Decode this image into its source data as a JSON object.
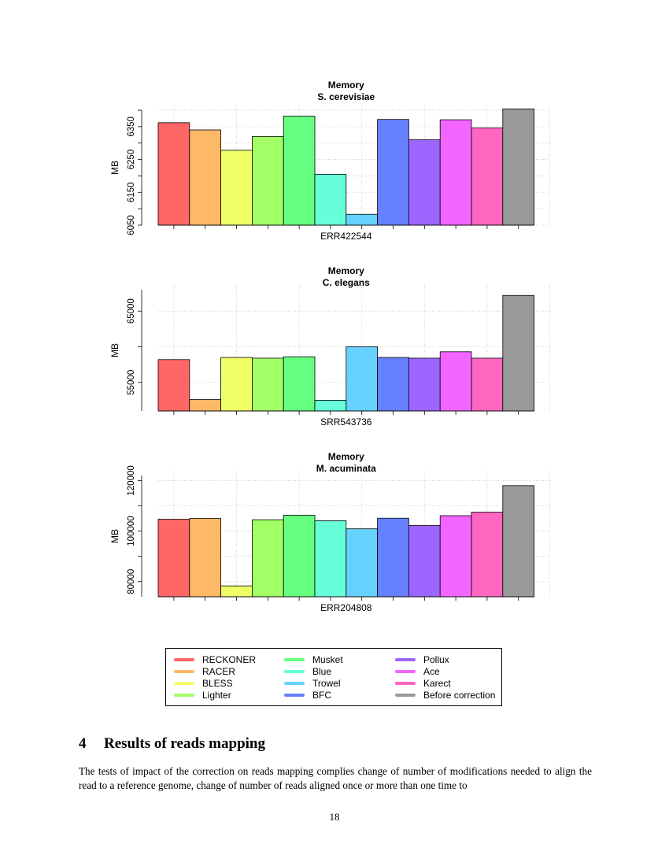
{
  "chart_data": [
    {
      "type": "bar",
      "title": "Memory",
      "subtitle": "S. cerevisiae",
      "ylabel": "MB",
      "xlabel": "ERR422544",
      "ylim": [
        6050,
        6400
      ],
      "yticks": [
        6050,
        6150,
        6250,
        6350
      ],
      "grid": true,
      "categories": [
        "RECKONER",
        "RACER",
        "BLESS",
        "Lighter",
        "Musket",
        "Blue",
        "Trowel",
        "BFC",
        "Pollux",
        "Ace",
        "Karect",
        "Before correction"
      ],
      "values": [
        6362,
        6340,
        6278,
        6320,
        6382,
        6205,
        6083,
        6372,
        6310,
        6371,
        6346,
        6404
      ]
    },
    {
      "type": "bar",
      "title": "Memory",
      "subtitle": "C. elegans",
      "ylabel": "MB",
      "xlabel": "SRR543736",
      "ylim": [
        51000,
        68000
      ],
      "yticks": [
        55000,
        65000
      ],
      "grid": true,
      "categories": [
        "RECKONER",
        "RACER",
        "BLESS",
        "Lighter",
        "Musket",
        "Blue",
        "Trowel",
        "BFC",
        "Pollux",
        "Ace",
        "Karect",
        "Before correction"
      ],
      "values": [
        58200,
        52600,
        58500,
        58400,
        58600,
        52500,
        60000,
        58500,
        58400,
        59300,
        58400,
        67200
      ]
    },
    {
      "type": "bar",
      "title": "Memory",
      "subtitle": "M. acuminata",
      "ylabel": "MB",
      "xlabel": "ERR204808",
      "ylim": [
        74000,
        122000
      ],
      "yticks": [
        80000,
        100000,
        120000
      ],
      "grid": true,
      "categories": [
        "RECKONER",
        "RACER",
        "BLESS",
        "Lighter",
        "Musket",
        "Blue",
        "Trowel",
        "BFC",
        "Pollux",
        "Ace",
        "Karect",
        "Before correction"
      ],
      "values": [
        104700,
        105000,
        78300,
        104500,
        106300,
        104100,
        100900,
        105100,
        102200,
        106100,
        107500,
        118000
      ]
    }
  ],
  "colors": [
    "#ff6666",
    "#ffb866",
    "#f0ff66",
    "#a3ff66",
    "#66ff80",
    "#66ffd9",
    "#66d1ff",
    "#6680ff",
    "#9c66ff",
    "#f266ff",
    "#ff66bf",
    "#999999"
  ],
  "legend": [
    {
      "label": "RECKONER",
      "color": "#ff6666"
    },
    {
      "label": "RACER",
      "color": "#ffb866"
    },
    {
      "label": "BLESS",
      "color": "#f0ff66"
    },
    {
      "label": "Lighter",
      "color": "#a3ff66"
    },
    {
      "label": "Musket",
      "color": "#66ff80"
    },
    {
      "label": "Blue",
      "color": "#66ffd9"
    },
    {
      "label": "Trowel",
      "color": "#66d1ff"
    },
    {
      "label": "BFC",
      "color": "#6680ff"
    },
    {
      "label": "Pollux",
      "color": "#9c66ff"
    },
    {
      "label": "Ace",
      "color": "#f266ff"
    },
    {
      "label": "Karect",
      "color": "#ff66bf"
    },
    {
      "label": "Before correction",
      "color": "#999999"
    }
  ],
  "section": {
    "number": "4",
    "title": "Results of reads mapping",
    "text": "The tests of impact of the correction on reads mapping complies change of number of modifications needed to align the read to a reference genome, change of number of reads aligned once or more than one time to"
  },
  "page_number": "18"
}
